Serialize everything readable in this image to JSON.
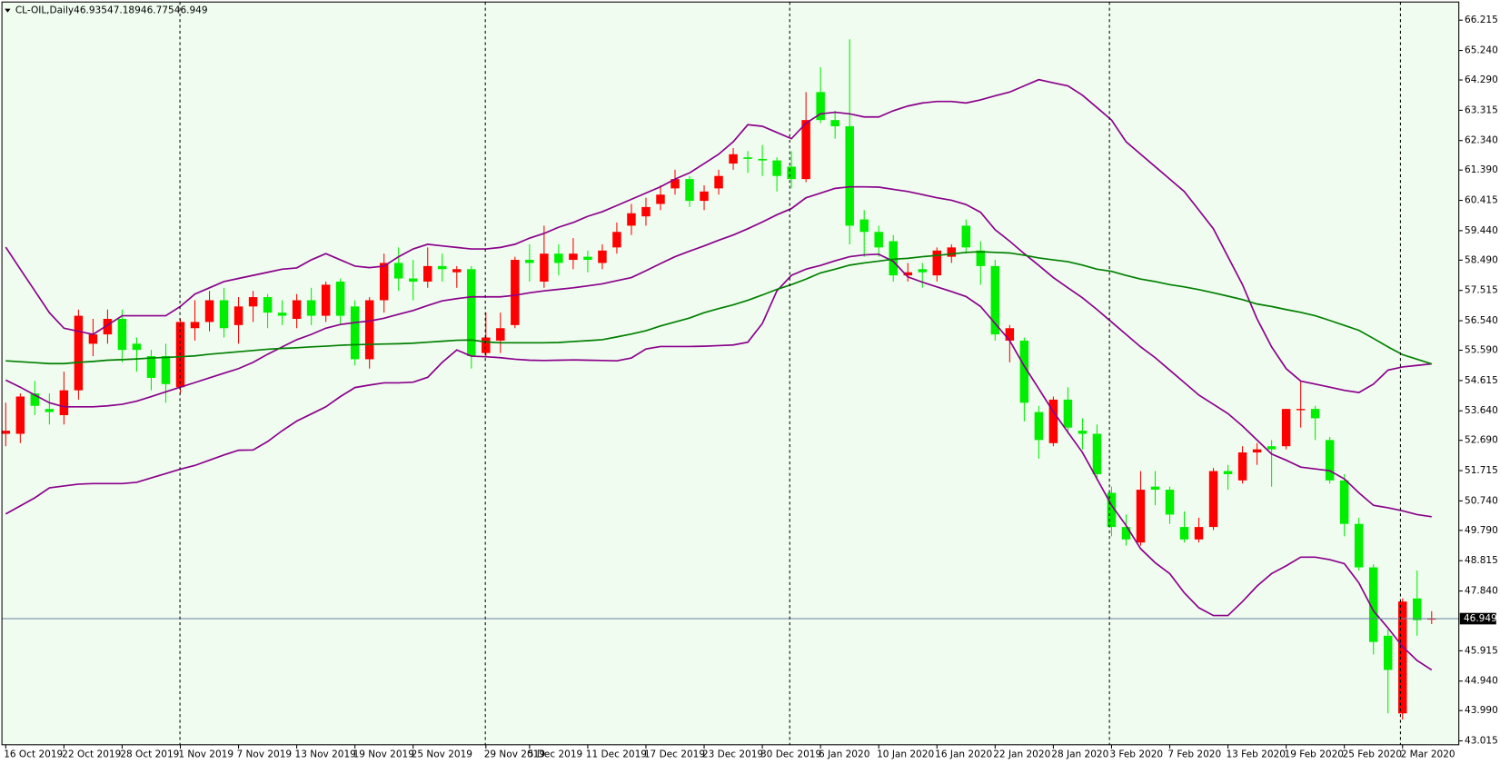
{
  "chart_data": {
    "type": "candlestick",
    "title": "CL-OIL,Daily",
    "categories": [
      "16 Oct 2019",
      null,
      null,
      null,
      "22 Oct 2019",
      null,
      null,
      null,
      "28 Oct 2019",
      null,
      null,
      null,
      "1 Nov 2019",
      null,
      null,
      null,
      "7 Nov 2019",
      null,
      null,
      null,
      "13 Nov 2019",
      null,
      null,
      null,
      "19 Nov 2019",
      null,
      null,
      null,
      "25 Nov 2019",
      null,
      null,
      null,
      null,
      "29 Nov 2019",
      null,
      null,
      "5 Dec 2019",
      null,
      null,
      null,
      "11 Dec 2019",
      null,
      null,
      null,
      "17 Dec 2019",
      null,
      null,
      null,
      "23 Dec 2019",
      null,
      null,
      null,
      "30 Dec 2019",
      null,
      null,
      null,
      "6 Jan 2020",
      null,
      null,
      null,
      "10 Jan 2020",
      null,
      null,
      null,
      "16 Jan 2020",
      null,
      null,
      null,
      "22 Jan 2020",
      null,
      null,
      null,
      "28 Jan 2020",
      null,
      null,
      null,
      "3 Feb 2020",
      null,
      null,
      null,
      "7 Feb 2020",
      null,
      null,
      null,
      "13 Feb 2020",
      null,
      null,
      null,
      "19 Feb 2020",
      null,
      null,
      null,
      "25 Feb 2020",
      null,
      null,
      null,
      "2 Mar 2020",
      null,
      null
    ],
    "open": [
      52.9,
      52.9,
      54.2,
      53.7,
      53.5,
      54.3,
      55.8,
      56.1,
      56.6,
      55.8,
      55.4,
      55.4,
      54.4,
      56.3,
      56.5,
      57.2,
      56.4,
      57.0,
      57.3,
      56.8,
      56.6,
      57.2,
      56.7,
      57.8,
      57.0,
      55.3,
      57.2,
      58.4,
      57.9,
      57.8,
      58.3,
      58.1,
      58.2,
      55.5,
      55.9,
      56.4,
      58.5,
      57.8,
      58.7,
      58.5,
      58.6,
      58.4,
      58.9,
      59.6,
      59.9,
      60.3,
      60.8,
      61.1,
      60.4,
      60.8,
      61.6,
      61.8,
      61.75,
      61.7,
      61.5,
      61.1,
      63.9,
      63.0,
      62.8,
      59.8,
      59.4,
      59.1,
      58.0,
      58.2,
      58.0,
      58.6,
      59.6,
      58.8,
      58.3,
      55.9,
      55.9,
      53.6,
      52.6,
      54.0,
      53.0,
      52.9,
      51.0,
      49.9,
      49.4,
      51.2,
      51.1,
      49.9,
      49.5,
      49.9,
      51.7,
      51.4,
      52.3,
      52.5,
      52.5,
      53.66,
      53.7,
      52.7,
      51.4,
      50.0,
      48.6,
      46.4,
      43.9,
      47.6,
      46.935
    ],
    "high": [
      53.9,
      54.2,
      54.6,
      54.2,
      54.9,
      56.9,
      56.6,
      56.9,
      56.9,
      56.0,
      55.6,
      55.8,
      56.6,
      57.2,
      57.5,
      57.6,
      57.3,
      57.5,
      57.4,
      57.2,
      57.4,
      57.6,
      57.8,
      57.9,
      57.2,
      57.3,
      58.7,
      58.9,
      58.5,
      58.9,
      58.7,
      58.3,
      58.3,
      56.8,
      56.8,
      58.6,
      59.0,
      59.6,
      59.0,
      59.2,
      58.8,
      59.0,
      59.7,
      60.3,
      60.5,
      60.9,
      61.4,
      61.2,
      60.9,
      61.4,
      62.1,
      62.0,
      62.2,
      61.8,
      62.0,
      63.9,
      64.7,
      63.3,
      65.6,
      60.1,
      59.6,
      59.3,
      58.4,
      58.4,
      58.9,
      59.0,
      59.8,
      59.1,
      58.5,
      56.4,
      56.0,
      53.8,
      54.1,
      54.4,
      53.4,
      53.2,
      51.2,
      50.3,
      51.7,
      51.7,
      51.2,
      50.4,
      50.2,
      51.8,
      51.9,
      52.5,
      52.6,
      52.7,
      53.7,
      54.6,
      53.8,
      52.8,
      51.6,
      50.2,
      48.7,
      46.6,
      47.6,
      48.5,
      47.189
    ],
    "low": [
      52.5,
      52.6,
      53.5,
      53.2,
      53.2,
      54.0,
      55.4,
      55.8,
      55.2,
      54.9,
      54.3,
      53.9,
      54.2,
      55.9,
      56.2,
      56.0,
      55.8,
      56.5,
      56.3,
      56.4,
      56.3,
      56.4,
      56.5,
      56.4,
      55.1,
      55.0,
      56.8,
      57.5,
      57.2,
      57.6,
      57.8,
      57.6,
      55.0,
      55.4,
      55.5,
      56.3,
      57.8,
      57.6,
      58.0,
      58.2,
      58.1,
      58.2,
      58.7,
      59.3,
      59.6,
      60.1,
      60.6,
      60.2,
      60.1,
      60.6,
      61.4,
      61.3,
      61.2,
      60.7,
      60.8,
      61.0,
      62.9,
      62.4,
      59.0,
      58.6,
      58.6,
      57.8,
      57.8,
      57.6,
      57.8,
      58.4,
      58.7,
      57.7,
      55.9,
      55.2,
      53.3,
      52.1,
      52.5,
      52.9,
      52.4,
      51.4,
      49.6,
      49.3,
      49.3,
      50.6,
      50.0,
      49.4,
      49.4,
      49.8,
      51.1,
      51.3,
      51.9,
      51.2,
      52.4,
      53.1,
      52.7,
      51.3,
      49.6,
      48.5,
      45.8,
      43.9,
      43.7,
      46.4,
      46.775
    ],
    "close": [
      53.0,
      54.1,
      53.8,
      53.6,
      54.3,
      56.7,
      56.1,
      56.6,
      55.6,
      55.6,
      54.7,
      54.5,
      56.5,
      56.5,
      57.2,
      56.3,
      57.0,
      57.3,
      56.8,
      56.7,
      57.2,
      56.7,
      57.7,
      56.7,
      55.3,
      57.2,
      58.4,
      57.9,
      57.8,
      58.3,
      58.2,
      58.2,
      55.4,
      56.0,
      56.3,
      58.5,
      58.4,
      58.7,
      58.4,
      58.7,
      58.5,
      58.8,
      59.4,
      60.0,
      60.2,
      60.6,
      61.1,
      60.4,
      60.7,
      61.2,
      61.9,
      61.75,
      61.7,
      61.2,
      61.1,
      63.0,
      63.0,
      62.8,
      59.6,
      59.4,
      58.9,
      58.0,
      58.1,
      58.1,
      58.8,
      58.9,
      58.9,
      58.3,
      56.1,
      56.3,
      53.9,
      52.7,
      54.0,
      53.1,
      52.9,
      51.6,
      49.9,
      49.5,
      51.1,
      51.1,
      50.3,
      49.5,
      49.9,
      51.7,
      51.6,
      52.3,
      52.4,
      52.4,
      53.7,
      53.7,
      53.4,
      51.4,
      50.0,
      48.6,
      46.2,
      45.3,
      47.5,
      46.9,
      46.949
    ],
    "up_color": "#ff0000",
    "down_color": "#00ee00",
    "series": [
      {
        "color": "#8b008b",
        "values": [
          58.91,
          58.2,
          57.5,
          56.8,
          56.3,
          56.2,
          56.1,
          56.4,
          56.7,
          56.7,
          56.7,
          56.7,
          57.0,
          57.4,
          57.6,
          57.8,
          57.9,
          58.0,
          58.1,
          58.2,
          58.24,
          58.5,
          58.7,
          58.5,
          58.3,
          58.25,
          58.3,
          58.6,
          58.85,
          59.0,
          58.95,
          58.9,
          58.85,
          58.85,
          58.9,
          59.0,
          59.2,
          59.35,
          59.55,
          59.7,
          59.9,
          60.05,
          60.25,
          60.45,
          60.65,
          60.85,
          61.1,
          61.3,
          61.6,
          61.9,
          62.3,
          62.85,
          62.8,
          62.6,
          62.4,
          62.9,
          63.2,
          63.25,
          63.2,
          63.1,
          63.1,
          63.3,
          63.45,
          63.55,
          63.6,
          63.6,
          63.55,
          63.65,
          63.78,
          63.9,
          64.1,
          64.3,
          64.2,
          64.1,
          63.8,
          63.4,
          63.0,
          62.3,
          61.9,
          61.5,
          61.1,
          60.7,
          60.1,
          59.5,
          58.6,
          57.7,
          56.6,
          55.7,
          55.0,
          54.6,
          54.5,
          54.4,
          54.3,
          54.23,
          54.5,
          54.95,
          55.05,
          55.1,
          55.15
        ]
      },
      {
        "color": "#8b008b",
        "values": [
          54.63,
          54.4,
          54.15,
          53.9,
          53.77,
          53.77,
          53.77,
          53.8,
          53.85,
          53.95,
          54.1,
          54.25,
          54.4,
          54.55,
          54.7,
          54.85,
          55.0,
          55.2,
          55.46,
          55.7,
          55.93,
          56.1,
          56.3,
          56.42,
          56.48,
          56.53,
          56.62,
          56.75,
          56.87,
          57.03,
          57.18,
          57.25,
          57.31,
          57.31,
          57.31,
          57.36,
          57.44,
          57.5,
          57.55,
          57.6,
          57.66,
          57.73,
          57.83,
          57.93,
          58.15,
          58.38,
          58.6,
          58.78,
          58.95,
          59.13,
          59.3,
          59.5,
          59.72,
          59.95,
          60.15,
          60.5,
          60.65,
          60.8,
          60.85,
          60.85,
          60.84,
          60.77,
          60.7,
          60.6,
          60.5,
          60.42,
          60.28,
          60.03,
          59.47,
          59.1,
          58.7,
          58.32,
          57.93,
          57.6,
          57.28,
          56.9,
          56.5,
          56.1,
          55.7,
          55.35,
          54.95,
          54.55,
          54.15,
          53.85,
          53.55,
          53.15,
          52.7,
          52.25,
          52.05,
          51.83,
          51.77,
          51.71,
          51.45,
          51.0,
          50.6,
          50.52,
          50.42,
          50.3,
          50.23
        ]
      },
      {
        "color": "#8b008b",
        "values": [
          50.32,
          50.58,
          50.84,
          51.16,
          51.22,
          51.28,
          51.3,
          51.3,
          51.3,
          51.34,
          51.48,
          51.62,
          51.76,
          51.88,
          52.05,
          52.22,
          52.37,
          52.38,
          52.65,
          53.0,
          53.31,
          53.54,
          53.77,
          54.1,
          54.39,
          54.47,
          54.54,
          54.54,
          54.56,
          54.72,
          55.2,
          55.6,
          55.4,
          55.38,
          55.35,
          55.3,
          55.27,
          55.26,
          55.27,
          55.28,
          55.27,
          55.26,
          55.25,
          55.34,
          55.63,
          55.71,
          55.71,
          55.71,
          55.72,
          55.74,
          55.76,
          55.85,
          56.45,
          57.5,
          58.0,
          58.2,
          58.32,
          58.47,
          58.6,
          58.66,
          58.68,
          58.45,
          57.95,
          57.78,
          57.63,
          57.48,
          57.32,
          57.0,
          56.45,
          55.9,
          55.08,
          54.35,
          53.61,
          52.95,
          52.3,
          51.45,
          50.6,
          49.95,
          49.2,
          48.75,
          48.4,
          47.78,
          47.3,
          47.05,
          47.05,
          47.5,
          48.0,
          48.4,
          48.65,
          48.93,
          48.93,
          48.85,
          48.72,
          48.1,
          47.2,
          46.65,
          46.05,
          45.6,
          45.3
        ]
      },
      {
        "color": "#008000",
        "values": [
          55.25,
          55.22,
          55.19,
          55.16,
          55.16,
          55.2,
          55.23,
          55.27,
          55.29,
          55.31,
          55.34,
          55.36,
          55.38,
          55.41,
          55.46,
          55.5,
          55.54,
          55.58,
          55.62,
          55.65,
          55.67,
          55.7,
          55.72,
          55.75,
          55.77,
          55.78,
          55.79,
          55.8,
          55.82,
          55.85,
          55.88,
          55.91,
          55.92,
          55.86,
          55.83,
          55.83,
          55.83,
          55.83,
          55.84,
          55.87,
          55.9,
          55.93,
          56.02,
          56.11,
          56.22,
          56.37,
          56.5,
          56.63,
          56.8,
          56.93,
          57.05,
          57.2,
          57.37,
          57.55,
          57.7,
          57.88,
          58.08,
          58.2,
          58.33,
          58.4,
          58.46,
          58.52,
          58.55,
          58.6,
          58.64,
          58.69,
          58.74,
          58.76,
          58.74,
          58.72,
          58.65,
          58.56,
          58.5,
          58.44,
          58.33,
          58.2,
          58.13,
          58.0,
          57.88,
          57.8,
          57.7,
          57.63,
          57.54,
          57.44,
          57.33,
          57.22,
          57.08,
          57.0,
          56.9,
          56.81,
          56.7,
          56.55,
          56.39,
          56.23,
          55.97,
          55.7,
          55.45,
          55.3,
          55.15
        ]
      }
    ],
    "ylim": [
      42.89,
      66.8
    ],
    "yticks": [
      66.215,
      {
        "value": 65.24,
        "label": "65.240"
      },
      {
        "value": 64.29,
        "label": "64.290"
      },
      63.315,
      {
        "value": 62.34,
        "label": "62.340"
      },
      {
        "value": 61.39,
        "label": "61.390"
      },
      60.415,
      {
        "value": 59.44,
        "label": "59.440"
      },
      {
        "value": 58.49,
        "label": "58.490"
      },
      57.515,
      {
        "value": 56.54,
        "label": "56.540"
      },
      {
        "value": 55.59,
        "label": "55.590"
      },
      54.615,
      {
        "value": 53.64,
        "label": "53.640"
      },
      {
        "value": 52.69,
        "label": "52.690"
      },
      51.715,
      {
        "value": 50.74,
        "label": "50.740"
      },
      {
        "value": 49.79,
        "label": "49.790"
      },
      48.815,
      {
        "value": 47.84,
        "label": "47.840"
      },
      45.915,
      {
        "value": 44.94,
        "label": "44.940"
      },
      {
        "value": 43.99,
        "label": "43.990"
      },
      43.015
    ],
    "grid": false
  }
}
